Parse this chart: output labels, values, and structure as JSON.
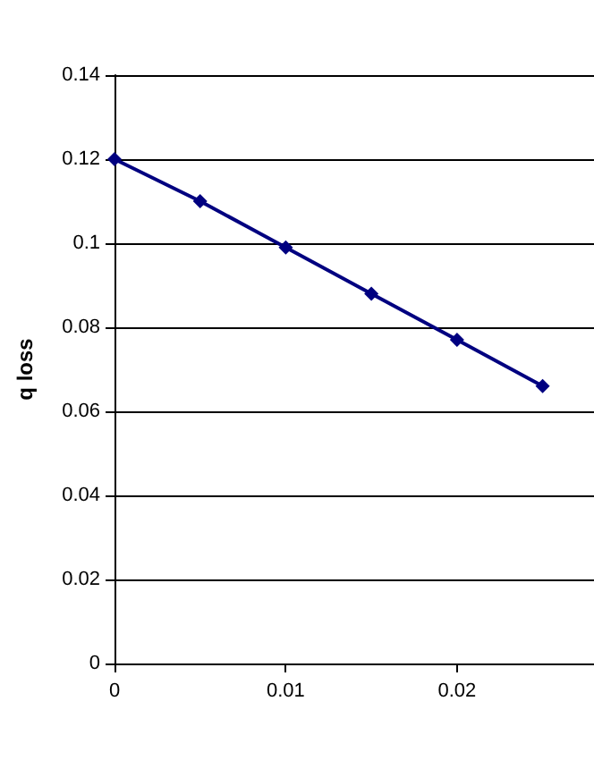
{
  "chart_data": {
    "type": "line",
    "ylabel": "q loss",
    "x": [
      0,
      0.005,
      0.01,
      0.015,
      0.02,
      0.025
    ],
    "series": [
      {
        "color": "#000080",
        "values": [
          0.12,
          0.11,
          0.099,
          0.088,
          0.077,
          0.066
        ]
      }
    ],
    "xlim": [
      0,
      0.028
    ],
    "xticks": [
      0,
      0.01,
      0.02
    ],
    "ylim": [
      0,
      0.14
    ],
    "yticks": [
      0,
      0.02,
      0.04,
      0.06,
      0.08,
      0.1,
      0.12,
      0.14
    ],
    "grid": "y",
    "marker": "diamond",
    "line_style": "solid"
  }
}
